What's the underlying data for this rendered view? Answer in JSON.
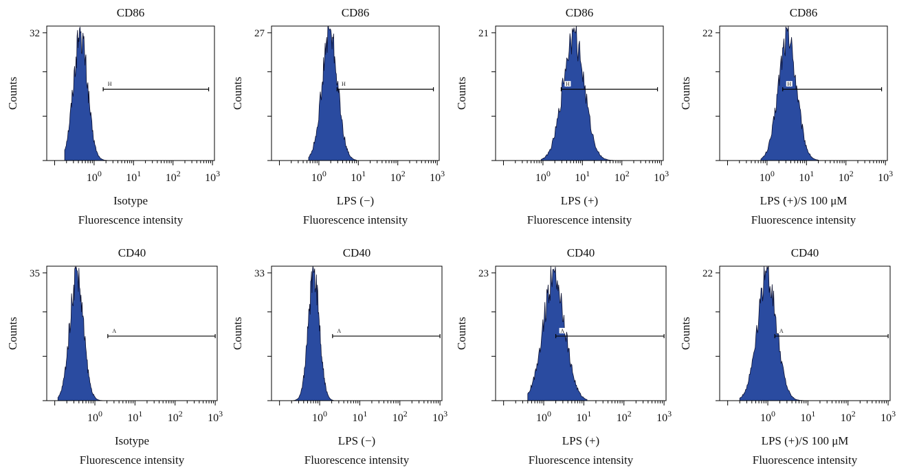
{
  "colors": {
    "histogram_fill": "#2a4ba0",
    "histogram_edge": "#0b1030",
    "axis": "#000000"
  },
  "chart_data": [
    {
      "type": "histogram",
      "title": "CD86",
      "ylabel": "Counts",
      "xlabel_top": "Isotype",
      "xlabel": "Fluorescence intensity",
      "x_scale": "log",
      "x_ticks": [
        1,
        10,
        100,
        1000
      ],
      "ytick_max": 32,
      "gate": {
        "label": "H",
        "from": 1.7,
        "to": 800,
        "level": 0.53
      },
      "peak": {
        "center": 0.45,
        "spread": 0.18,
        "min": 0.18,
        "max": 2.4,
        "max_count": 35
      }
    },
    {
      "type": "histogram",
      "title": "CD86",
      "ylabel": "Counts",
      "xlabel_top": "LPS (−)",
      "xlabel": "Fluorescence intensity",
      "x_scale": "log",
      "x_ticks": [
        1,
        10,
        100,
        1000
      ],
      "ytick_max": 27,
      "gate": {
        "label": "H",
        "from": 2.9,
        "to": 800,
        "level": 0.53
      },
      "peak": {
        "center": 1.9,
        "spread": 0.2,
        "min": 0.55,
        "max": 9,
        "max_count": 29
      }
    },
    {
      "type": "histogram",
      "title": "CD86",
      "ylabel": "Counts",
      "xlabel_top": "LPS (+)",
      "xlabel": "Fluorescence intensity",
      "x_scale": "log",
      "x_ticks": [
        1,
        10,
        100,
        1000
      ],
      "ytick_max": 21,
      "gate": {
        "label": "H",
        "from": 2.9,
        "to": 800,
        "level": 0.53
      },
      "peak": {
        "center": 6,
        "spread": 0.27,
        "min": 0.9,
        "max": 60,
        "max_count": 23
      }
    },
    {
      "type": "histogram",
      "title": "CD86",
      "ylabel": "Counts",
      "xlabel_top": "LPS (+)/S 100 μM",
      "xlabel": "Fluorescence intensity",
      "x_scale": "log",
      "x_ticks": [
        1,
        10,
        100,
        1000
      ],
      "ytick_max": 22,
      "gate": {
        "label": "H",
        "from": 2.5,
        "to": 800,
        "level": 0.53
      },
      "peak": {
        "center": 3.3,
        "spread": 0.23,
        "min": 0.7,
        "max": 20,
        "max_count": 24
      }
    },
    {
      "type": "histogram",
      "title": "CD40",
      "ylabel": "Counts",
      "xlabel_top": "Isotype",
      "xlabel": "Fluorescence intensity",
      "x_scale": "log",
      "x_ticks": [
        1,
        10,
        100,
        1000
      ],
      "ytick_max": 35,
      "gate": {
        "label": "A",
        "from": 2.1,
        "to": 1000,
        "level": 0.48
      },
      "peak": {
        "center": 0.35,
        "spread": 0.17,
        "min": 0.12,
        "max": 1.8,
        "max_count": 38
      }
    },
    {
      "type": "histogram",
      "title": "CD40",
      "ylabel": "Counts",
      "xlabel_top": "LPS (−)",
      "xlabel": "Fluorescence intensity",
      "x_scale": "log",
      "x_ticks": [
        1,
        10,
        100,
        1000
      ],
      "ytick_max": 33,
      "gate": {
        "label": "A",
        "from": 2.1,
        "to": 1000,
        "level": 0.48
      },
      "peak": {
        "center": 0.72,
        "spread": 0.14,
        "min": 0.22,
        "max": 2.2,
        "max_count": 36
      }
    },
    {
      "type": "histogram",
      "title": "CD40",
      "ylabel": "Counts",
      "xlabel_top": "LPS (+)",
      "xlabel": "Fluorescence intensity",
      "x_scale": "log",
      "x_ticks": [
        1,
        10,
        100,
        1000
      ],
      "ytick_max": 23,
      "gate": {
        "label": "A",
        "from": 2.0,
        "to": 1000,
        "level": 0.48
      },
      "peak": {
        "center": 1.8,
        "spread": 0.27,
        "min": 0.4,
        "max": 12,
        "max_count": 25
      }
    },
    {
      "type": "histogram",
      "title": "CD40",
      "ylabel": "Counts",
      "xlabel_top": "LPS (+)/S 100 μM",
      "xlabel": "Fluorescence intensity",
      "x_scale": "log",
      "x_ticks": [
        1,
        10,
        100,
        1000
      ],
      "ytick_max": 22,
      "gate": {
        "label": "A",
        "from": 1.5,
        "to": 1000,
        "level": 0.48
      },
      "peak": {
        "center": 0.95,
        "spread": 0.24,
        "min": 0.2,
        "max": 9,
        "max_count": 24
      }
    }
  ]
}
